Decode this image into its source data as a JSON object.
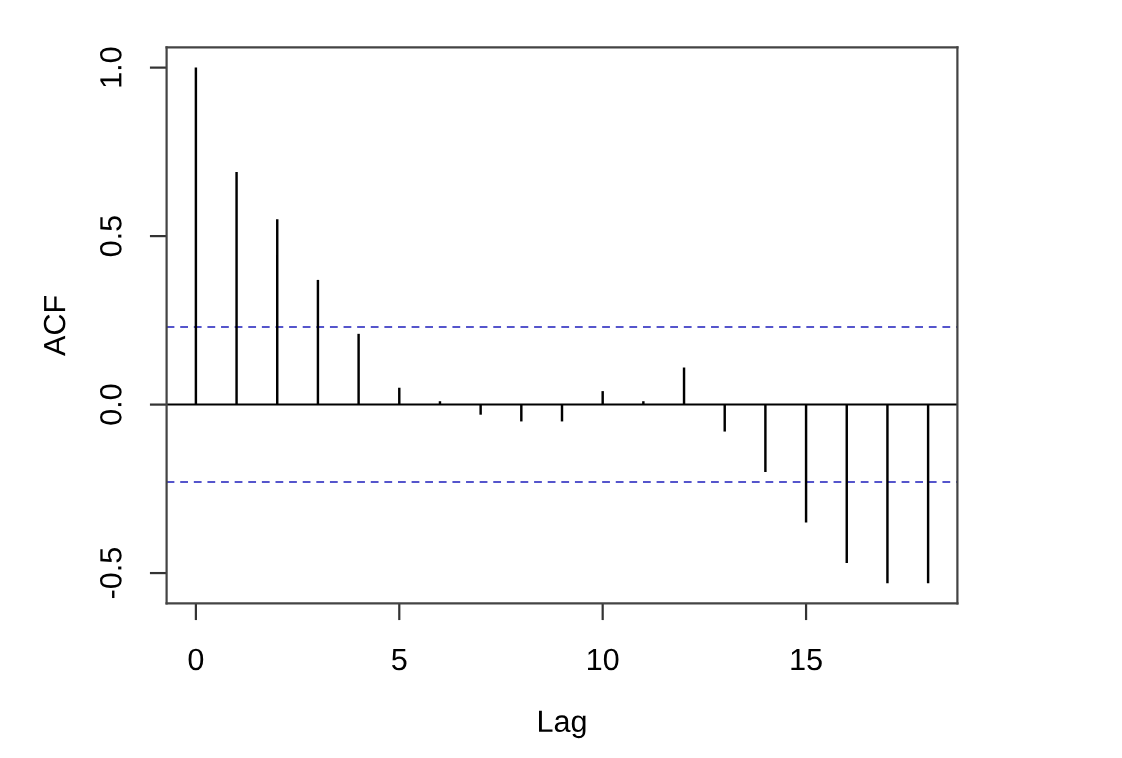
{
  "chart_data": {
    "type": "bar",
    "xlabel": "Lag",
    "ylabel": "ACF",
    "x": [
      0,
      1,
      2,
      3,
      4,
      5,
      6,
      7,
      8,
      9,
      10,
      11,
      12,
      13,
      14,
      15,
      16,
      17,
      18
    ],
    "series": [
      {
        "color": "#000000",
        "values": [
          1.0,
          0.69,
          0.55,
          0.37,
          0.21,
          0.05,
          0.01,
          -0.03,
          -0.05,
          -0.05,
          0.04,
          0.01,
          0.11,
          -0.08,
          -0.2,
          -0.35,
          -0.47,
          -0.53,
          -0.53
        ]
      }
    ],
    "xlim": [
      -0.72,
      18.72
    ],
    "ylim": [
      -0.59,
      1.06
    ],
    "xticks": [
      0,
      5,
      10,
      15
    ],
    "yticks": [
      {
        "value": -0.5,
        "label": "-0.5"
      },
      {
        "value": 0,
        "label": "0.0"
      },
      {
        "value": 0.5,
        "label": "0.5"
      },
      {
        "value": 1,
        "label": "1.0"
      }
    ],
    "ref_lines": [
      {
        "axis": "y",
        "value": 0,
        "color": "#000000",
        "line_style": "solid"
      },
      {
        "axis": "y",
        "value": 0.23,
        "color": "#5555cc",
        "line_style": "dashed"
      },
      {
        "axis": "y",
        "value": -0.23,
        "color": "#5555cc",
        "line_style": "dashed"
      }
    ],
    "grid": false,
    "legend": false
  }
}
